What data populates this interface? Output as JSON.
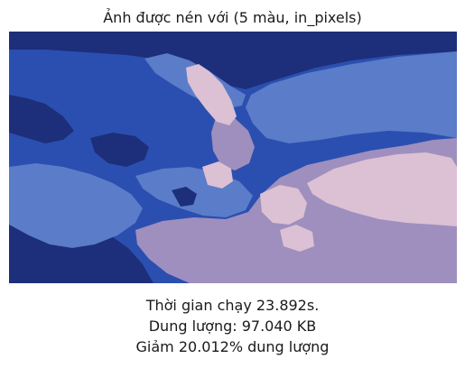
{
  "figure": {
    "title": "Ảnh được nén với (5 màu, in_pixels)"
  },
  "palette": {
    "navy": "#1d2f7a",
    "royal_blue": "#2b4fb0",
    "cornflower": "#5b7cc8",
    "lavender": "#9e8fbe",
    "pale_pink": "#dcc0d4"
  },
  "caption": {
    "runtime": "Thời gian chạy 23.892s.",
    "size": "Dung lượng: 97.040 KB",
    "reduction": "Giảm 20.012% dung lượng"
  }
}
